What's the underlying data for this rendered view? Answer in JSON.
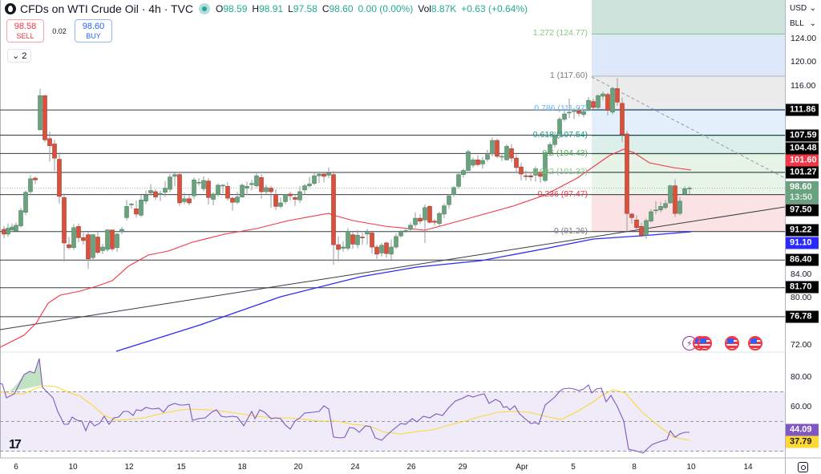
{
  "header": {
    "title": "CFDs on WTI Crude Oil · 4h · TVC",
    "open_label": "O",
    "open": "98.59",
    "high_label": "H",
    "high": "98.91",
    "low_label": "L",
    "low": "97.58",
    "close_label": "C",
    "close": "98.60",
    "change": "0.00 (0.00%)",
    "volume_label": "Vol",
    "volume": "8.87K",
    "vol_change": "+0.63 (+0.64%)"
  },
  "trade": {
    "sell_price": "98.58",
    "sell_label": "SELL",
    "spread": "0.02",
    "buy_price": "98.60",
    "buy_label": "BUY"
  },
  "collapse": {
    "icon": "⌄",
    "count": "2"
  },
  "axis": {
    "currency": "USD",
    "unit": "BLL",
    "price_ticks": [
      "124.00",
      "120.00",
      "116.00",
      "84.00",
      "80.00",
      "72.00"
    ],
    "rsi_ticks": [
      "80.00",
      "60.00"
    ],
    "tags": [
      {
        "label": "111.86",
        "price": 111.86,
        "bg": "#000000"
      },
      {
        "label": "107.59",
        "price": 107.59,
        "bg": "#000000"
      },
      {
        "label": "104.48",
        "price": 104.48,
        "bg": "#000000"
      },
      {
        "label": "101.60",
        "price": 101.6,
        "bg": "#f23645"
      },
      {
        "label": "101.27",
        "price": 101.27,
        "bg": "#000000"
      },
      {
        "label": "98.60",
        "sub": "13:50",
        "price": 98.6,
        "bg": "#6aa17e"
      },
      {
        "label": "97.50",
        "price": 97.5,
        "bg": "#000000"
      },
      {
        "label": "91.22",
        "price": 91.22,
        "bg": "#000000"
      },
      {
        "label": "91.10",
        "price": 91.1,
        "bg": "#2a2aff"
      },
      {
        "label": "86.40",
        "price": 86.4,
        "bg": "#000000"
      },
      {
        "label": "81.70",
        "price": 81.7,
        "bg": "#000000"
      },
      {
        "label": "76.78",
        "price": 76.78,
        "bg": "#000000"
      }
    ],
    "rsi_tags": [
      {
        "label": "44.09",
        "bg": "#7e57c2",
        "color": "#ffffff"
      },
      {
        "label": "37.79",
        "bg": "#fdd835",
        "color": "#131722"
      }
    ]
  },
  "x_axis": [
    "6",
    "10",
    "12",
    "15",
    "18",
    "20",
    "24",
    "26",
    "29",
    "Apr",
    "5",
    "8",
    "10",
    "14"
  ],
  "colors": {
    "up": "#6aa17e",
    "down": "#d9513c",
    "ema50": "#f23645",
    "ema200": "#2a2aff",
    "rsi": "#7e57c2",
    "rsi_ma": "#fdd835",
    "hline": "#131722"
  },
  "chart_data": {
    "type": "candlestick",
    "title": "CFDs on WTI Crude Oil · 4h · TVC",
    "ylabel": "USD / BLL",
    "ylim": [
      70,
      126
    ],
    "x_ticks": [
      "6",
      "10",
      "12",
      "15",
      "18",
      "20",
      "24",
      "26",
      "29",
      "Apr",
      "5",
      "8",
      "10",
      "14"
    ],
    "horizontal_levels": [
      111.86,
      107.59,
      104.48,
      101.27,
      97.5,
      91.22,
      86.4,
      81.7,
      76.78
    ],
    "fibonacci": [
      {
        "level": "1.272",
        "price": 124.77
      },
      {
        "level": "1",
        "price": 117.6
      },
      {
        "level": "0.786",
        "price": 111.97
      },
      {
        "level": "0.618",
        "price": 107.54
      },
      {
        "level": "0.5",
        "price": 104.43
      },
      {
        "level": "0.382",
        "price": 101.32
      },
      {
        "level": "0.236",
        "price": 97.47
      },
      {
        "level": "0",
        "price": 91.26
      }
    ],
    "last_price": 98.6,
    "ema_50_last": 101.6,
    "ema_200_last": 91.1,
    "rsi": {
      "last": 44.09,
      "ma_last": 37.79,
      "upper_band": 70,
      "mid": 50,
      "lower_band": 30
    },
    "ohlc_last": {
      "open": 98.59,
      "high": 98.91,
      "low": 97.58,
      "close": 98.6
    }
  },
  "fib_labels": [
    {
      "text": "1.272 (124.77)",
      "price": 124.77,
      "color": "#81c784"
    },
    {
      "text": "1 (117.60)",
      "price": 117.6,
      "color": "#787b86"
    },
    {
      "text": "0.786 (111.97)",
      "price": 111.97,
      "color": "#64b5f6"
    },
    {
      "text": "0.618 (107.54)",
      "price": 107.54,
      "color": "#089981"
    },
    {
      "text": "0.5 (104.43)",
      "price": 104.43,
      "color": "#4caf50"
    },
    {
      "text": "0.382 (101.32)",
      "price": 101.32,
      "color": "#81c784"
    },
    {
      "text": "0.236 (97.47)",
      "price": 97.47,
      "color": "#f23645"
    },
    {
      "text": "0 (91.26)",
      "price": 91.26,
      "color": "#787b86"
    }
  ],
  "logo": "17"
}
